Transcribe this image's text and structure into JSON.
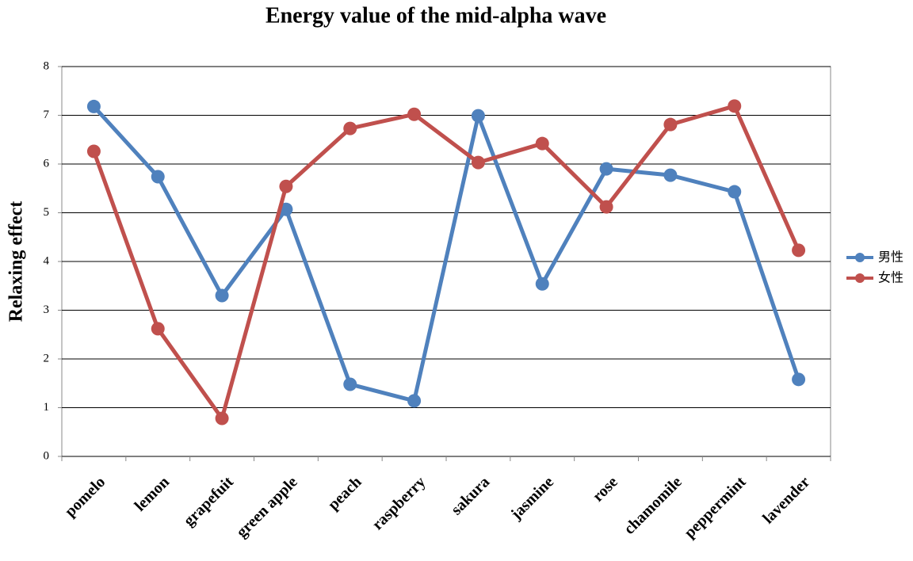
{
  "chart_data": {
    "type": "line",
    "title": "Energy value of the mid-alpha wave",
    "y_label": "Relaxing effect",
    "categories": [
      "pomelo",
      "lemon",
      "grapefuit",
      "green apple",
      "peach",
      "raspberry",
      "sakura",
      "jasmine",
      "rose",
      "chamomile",
      "peppermint",
      "lavender"
    ],
    "series": [
      {
        "name": "男性",
        "color": "#4f81bd",
        "values": [
          7.18,
          5.74,
          3.3,
          5.07,
          1.48,
          1.14,
          6.99,
          3.54,
          5.9,
          5.77,
          5.43,
          1.58
        ]
      },
      {
        "name": "女性",
        "color": "#c0504d",
        "values": [
          6.26,
          2.62,
          0.78,
          5.54,
          6.73,
          7.02,
          6.03,
          6.42,
          5.12,
          6.81,
          7.19,
          4.23
        ]
      }
    ],
    "ylim": [
      0,
      8
    ],
    "yticks": [
      0,
      1,
      2,
      3,
      4,
      5,
      6,
      7,
      8
    ],
    "grid": true,
    "legend": "right"
  }
}
